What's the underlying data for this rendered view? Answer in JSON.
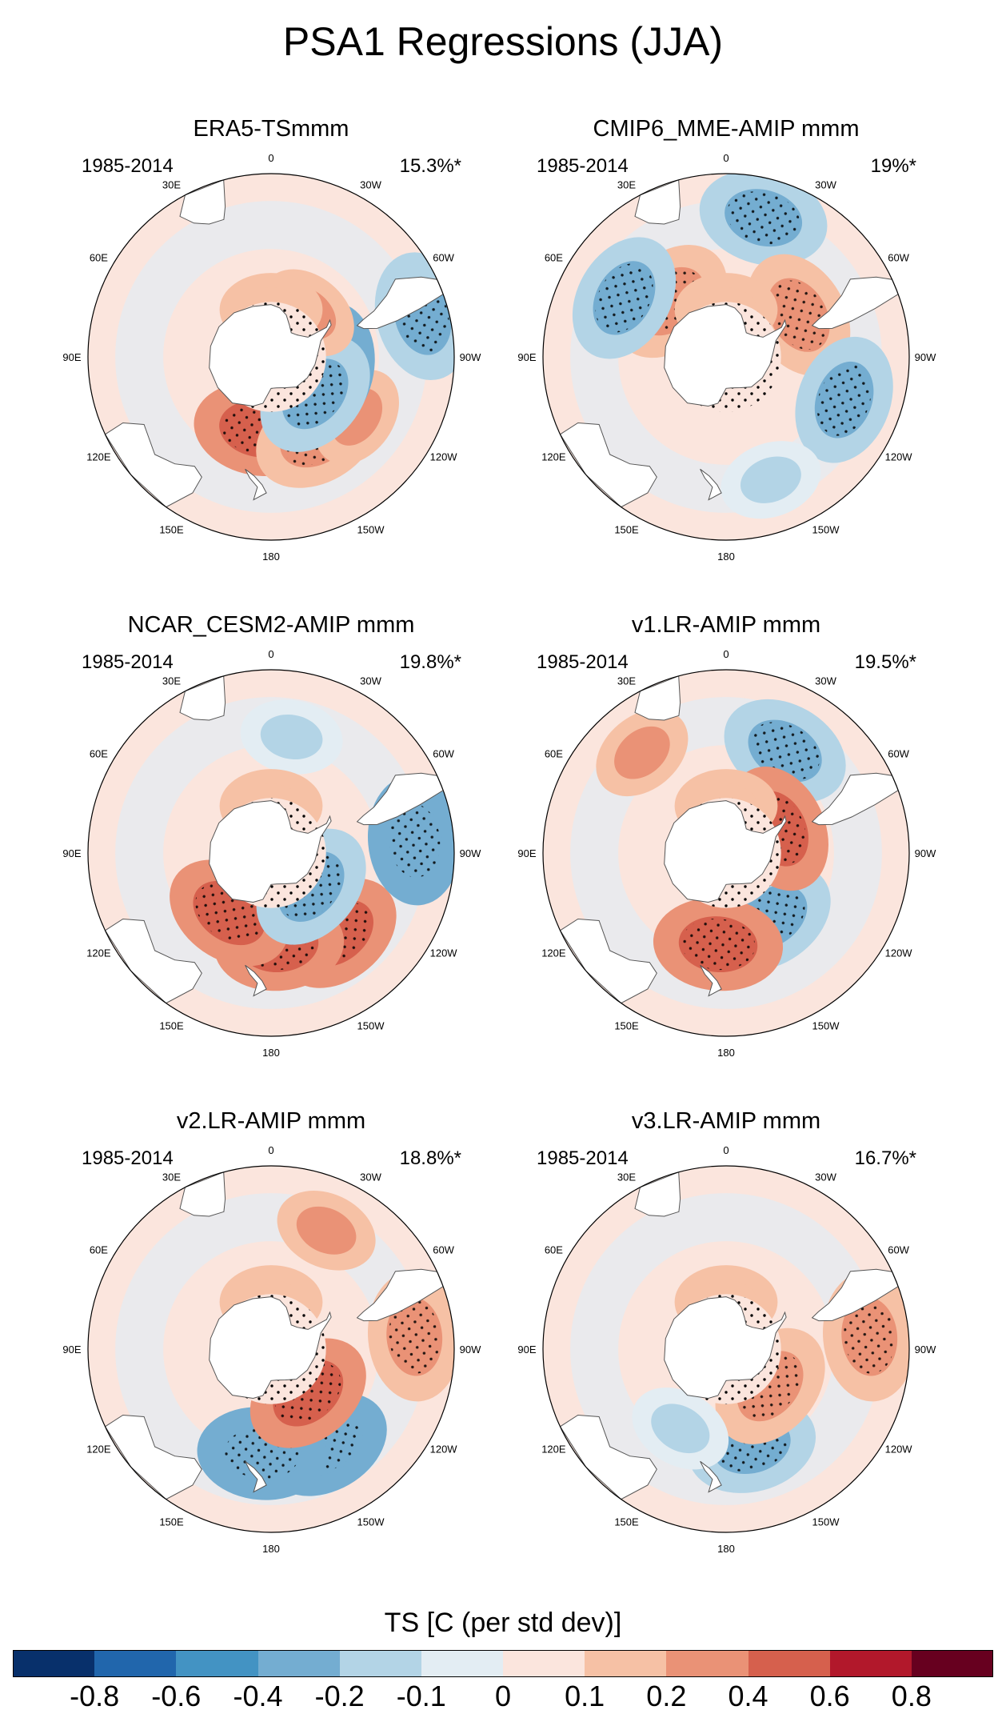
{
  "title": "PSA1 Regressions (JJA)",
  "panels": [
    {
      "title": "ERA5-TSmmm",
      "period": "1985-2014",
      "variance": "15.3%*"
    },
    {
      "title": "CMIP6_MME-AMIP  mmm",
      "period": "1985-2014",
      "variance": "19%*"
    },
    {
      "title": "NCAR_CESM2-AMIP  mmm",
      "period": "1985-2014",
      "variance": "19.8%*"
    },
    {
      "title": "v1.LR-AMIP  mmm",
      "period": "1985-2014",
      "variance": "19.5%*"
    },
    {
      "title": "v2.LR-AMIP  mmm",
      "period": "1985-2014",
      "variance": "18.8%*"
    },
    {
      "title": "v3.LR-AMIP  mmm",
      "period": "1985-2014",
      "variance": "16.7%*"
    }
  ],
  "longitude_labels": [
    "0",
    "30E",
    "60E",
    "90E",
    "120E",
    "150E",
    "180",
    "150W",
    "120W",
    "90W",
    "60W",
    "30W"
  ],
  "colorbar": {
    "title": "TS [C (per std dev)]",
    "labels": [
      "-0.8",
      "-0.6",
      "-0.4",
      "-0.2",
      "-0.1",
      "0",
      "0.1",
      "0.2",
      "0.4",
      "0.6",
      "0.8"
    ],
    "colors": [
      "#08306b",
      "#2166ac",
      "#4393c3",
      "#74add1",
      "#b3d4e6",
      "#e3edf3",
      "#fbe5dd",
      "#f6c1a5",
      "#ea9276",
      "#d6604d",
      "#b2182b",
      "#67001f"
    ]
  },
  "chart_data": {
    "type": "heatmap",
    "title": "PSA1 Regressions (JJA)",
    "variable": "TS [C (per std dev)]",
    "projection": "south polar stereographic",
    "levels": [
      -0.8,
      -0.6,
      -0.4,
      -0.2,
      -0.1,
      0,
      0.1,
      0.2,
      0.4,
      0.6,
      0.8
    ],
    "significance": "stippling",
    "panels": [
      {
        "name": "ERA5-TSmmm",
        "variance_explained_pct": 15.3,
        "anomalies": [
          {
            "lon": 170,
            "lat": -62,
            "value": 0.4
          },
          {
            "lon": -150,
            "lat": -55,
            "value": 0.3
          },
          {
            "lon": -125,
            "lat": -50,
            "value": 0.2
          },
          {
            "lon": -100,
            "lat": -68,
            "value": -0.4
          },
          {
            "lon": -130,
            "lat": -68,
            "value": -0.3
          },
          {
            "lon": -75,
            "lat": -30,
            "value": -0.3
          },
          {
            "lon": -40,
            "lat": -68,
            "value": 0.2
          },
          {
            "lon": 0,
            "lat": -72,
            "value": 0.1
          }
        ]
      },
      {
        "name": "CMIP6_MME-AMIP  mmm",
        "variance_explained_pct": 19,
        "anomalies": [
          {
            "lon": -15,
            "lat": -35,
            "value": -0.3
          },
          {
            "lon": -60,
            "lat": -58,
            "value": 0.3
          },
          {
            "lon": -110,
            "lat": -42,
            "value": -0.3
          },
          {
            "lon": -160,
            "lat": -40,
            "value": -0.2
          },
          {
            "lon": 45,
            "lat": -60,
            "value": 0.3
          },
          {
            "lon": 60,
            "lat": -45,
            "value": -0.3
          },
          {
            "lon": 0,
            "lat": -72,
            "value": 0.1
          }
        ]
      },
      {
        "name": "NCAR_CESM2-AMIP  mmm",
        "variance_explained_pct": 19.8,
        "anomalies": [
          {
            "lon": -140,
            "lat": -50,
            "value": 0.4
          },
          {
            "lon": -175,
            "lat": -55,
            "value": 0.4
          },
          {
            "lon": 145,
            "lat": -62,
            "value": 0.4
          },
          {
            "lon": -85,
            "lat": -35,
            "value": -0.4
          },
          {
            "lon": -130,
            "lat": -70,
            "value": -0.3
          },
          {
            "lon": -10,
            "lat": -45,
            "value": -0.2
          },
          {
            "lon": 0,
            "lat": -72,
            "value": 0.1
          }
        ]
      },
      {
        "name": "v1.LR-AMIP  mmm",
        "variance_explained_pct": 19.5,
        "anomalies": [
          {
            "lon": -145,
            "lat": -60,
            "value": -0.3
          },
          {
            "lon": 175,
            "lat": -55,
            "value": 0.4
          },
          {
            "lon": -30,
            "lat": -45,
            "value": -0.3
          },
          {
            "lon": -65,
            "lat": -68,
            "value": 0.4
          },
          {
            "lon": 40,
            "lat": -40,
            "value": 0.2
          },
          {
            "lon": 0,
            "lat": -72,
            "value": 0.1
          }
        ]
      },
      {
        "name": "v2.LR-AMIP  mmm",
        "variance_explained_pct": 18.8,
        "anomalies": [
          {
            "lon": -150,
            "lat": -48,
            "value": -0.4
          },
          {
            "lon": 175,
            "lat": -50,
            "value": -0.4
          },
          {
            "lon": -140,
            "lat": -68,
            "value": 0.4
          },
          {
            "lon": -85,
            "lat": -35,
            "value": 0.3
          },
          {
            "lon": -25,
            "lat": -40,
            "value": 0.2
          },
          {
            "lon": 0,
            "lat": -72,
            "value": 0.1
          }
        ]
      },
      {
        "name": "v3.LR-AMIP  mmm",
        "variance_explained_pct": 16.7,
        "anomalies": [
          {
            "lon": -165,
            "lat": -52,
            "value": -0.3
          },
          {
            "lon": -130,
            "lat": -68,
            "value": 0.3
          },
          {
            "lon": -85,
            "lat": -35,
            "value": 0.3
          },
          {
            "lon": 150,
            "lat": -55,
            "value": -0.2
          },
          {
            "lon": 0,
            "lat": -72,
            "value": 0.1
          }
        ]
      }
    ]
  }
}
